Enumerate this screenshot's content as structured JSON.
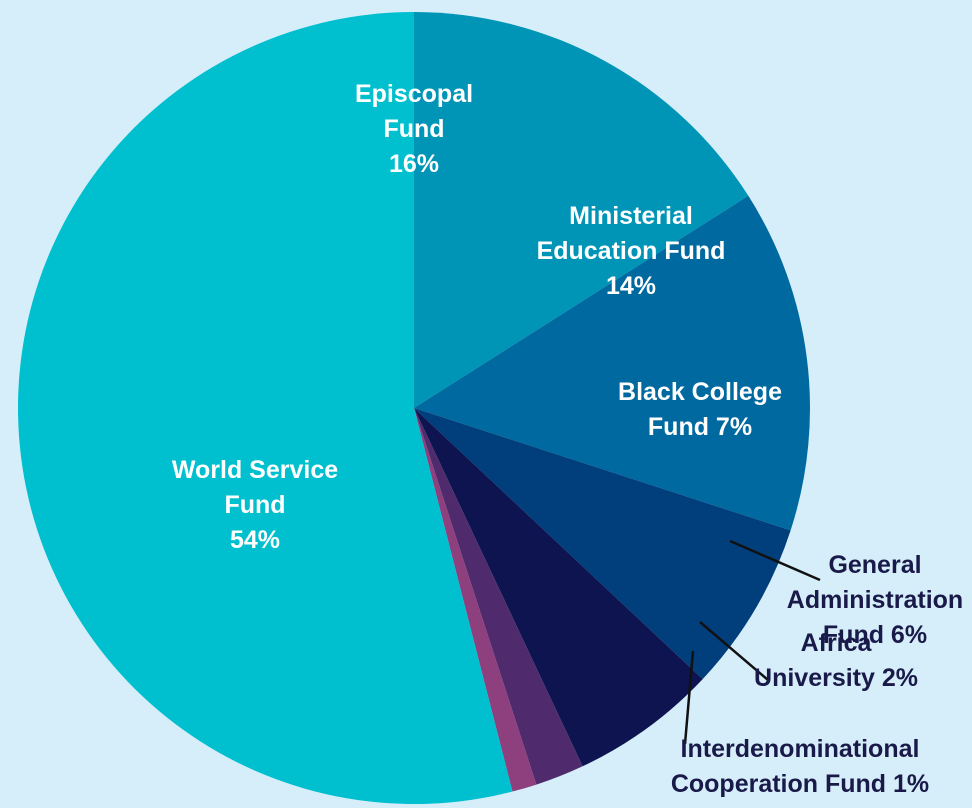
{
  "chart_data": {
    "type": "pie",
    "title": "",
    "start_angle_deg": 90,
    "direction": "clockwise",
    "slices": [
      {
        "name": "Episcopal Fund",
        "value": 16,
        "label_lines": [
          "Episcopal",
          "Fund",
          "16%"
        ],
        "color": "#0095b7",
        "label_inside": true
      },
      {
        "name": "Ministerial Education Fund",
        "value": 14,
        "label_lines": [
          "Ministerial",
          "Education Fund",
          "14%"
        ],
        "color": "#0069a0",
        "label_inside": true
      },
      {
        "name": "Black College Fund",
        "value": 7,
        "label_lines": [
          "Black College",
          "Fund 7%"
        ],
        "color": "#003e7c",
        "label_inside": true
      },
      {
        "name": "General Administration Fund",
        "value": 6,
        "label_lines": [
          "General",
          "Administration",
          "Fund 6%"
        ],
        "color": "#0d1450",
        "label_inside": false
      },
      {
        "name": "Africa University",
        "value": 2,
        "label_lines": [
          "Africa",
          "University 2%"
        ],
        "color": "#4f2a6c",
        "label_inside": false
      },
      {
        "name": "Interdenominational Cooperation Fund",
        "value": 1,
        "label_lines": [
          "Interdenominational",
          "Cooperation Fund 1%"
        ],
        "color": "#8e3f7d",
        "label_inside": false
      },
      {
        "name": "World Service Fund",
        "value": 54,
        "label_lines": [
          "World Service",
          "Fund",
          "54%"
        ],
        "color": "#00c0cf",
        "label_inside": true
      }
    ]
  }
}
